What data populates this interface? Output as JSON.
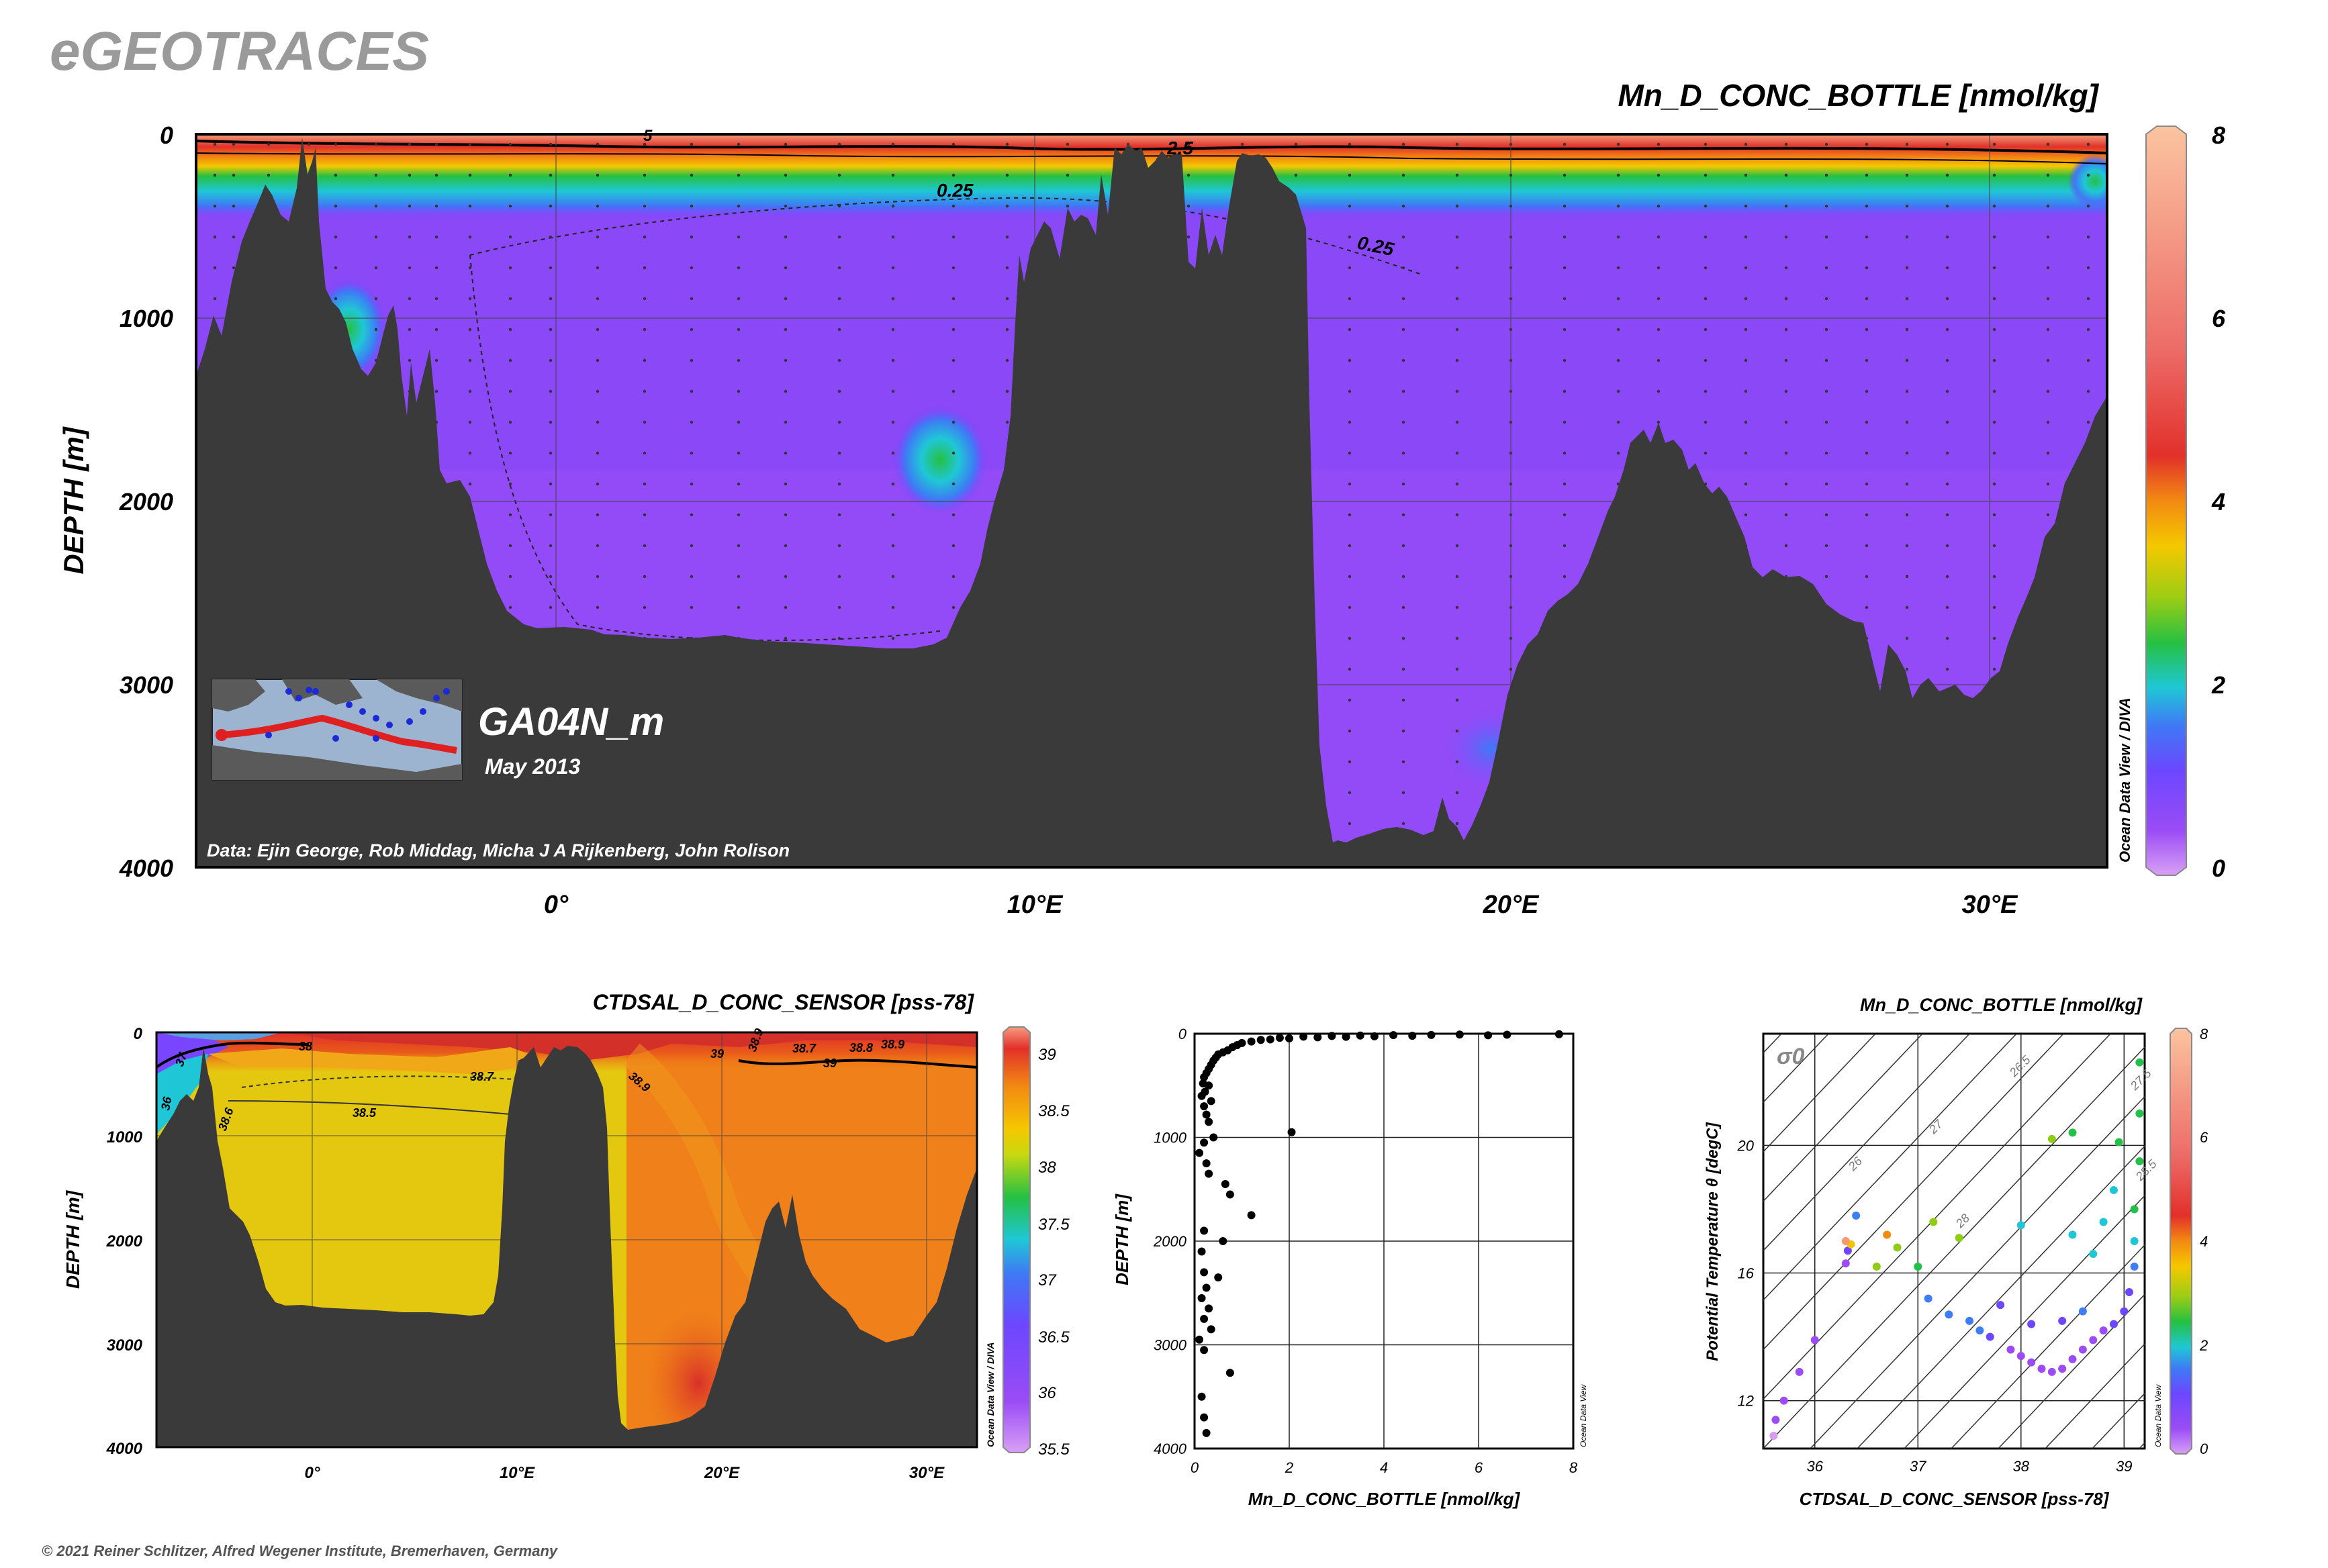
{
  "logo": "eGEOTRACES",
  "copyright": "© 2021 Reiner Schlitzer, Alfred Wegener Institute, Bremerhaven, Germany",
  "odv_label": "Ocean Data View / DIVA",
  "odv_label_short": "Ocean Data View",
  "colors": {
    "bathymetry": "#3a3a3a",
    "scale": [
      "#d79cf2",
      "#9d4cf5",
      "#6c47ff",
      "#3d7df5",
      "#1fc7d6",
      "#23c04a",
      "#8fcc14",
      "#f5c400",
      "#f28a12",
      "#e2302a",
      "#f79a70",
      "#fbc8a5"
    ]
  },
  "main_section": {
    "title": "Mn_D_CONC_BOTTLE [nmol/kg]",
    "ylabel": "DEPTH [m]",
    "depth_ticks": [
      "0",
      "1000",
      "2000",
      "3000",
      "4000"
    ],
    "lon_ticks": [
      "0°",
      "10°E",
      "20°E",
      "30°E"
    ],
    "colorbar_ticks": [
      "8",
      "6",
      "4",
      "2",
      "0"
    ],
    "contour_labels": [
      "0.25",
      "0.25",
      "2.5",
      "5"
    ],
    "cruise": "GA04N_m",
    "date": "May 2013",
    "credits": "Data: Ejin George, Rob Middag, Micha J A Rijkenberg, John Rolison"
  },
  "salinity_section": {
    "title": "CTDSAL_D_CONC_SENSOR [pss-78]",
    "ylabel": "DEPTH [m]",
    "depth_ticks": [
      "0",
      "1000",
      "2000",
      "3000",
      "4000"
    ],
    "lon_ticks": [
      "0°",
      "10°E",
      "20°E",
      "30°E"
    ],
    "colorbar_ticks": [
      "39",
      "38.5",
      "38",
      "37.5",
      "37",
      "36.5",
      "36",
      "35.5"
    ],
    "contour_labels": [
      "38",
      "38.5",
      "38.6",
      "38.7",
      "38.9",
      "39",
      "39",
      "38.7",
      "38.8",
      "38.9",
      "36",
      "37",
      "38.9"
    ]
  },
  "chart_data": [
    {
      "type": "heatmap",
      "title": "Mn_D_CONC_BOTTLE [nmol/kg]",
      "ylabel": "DEPTH [m]",
      "ylim": [
        4000,
        0
      ],
      "xlim": [
        -7.5,
        32.5
      ],
      "colorbar_range": [
        0,
        8
      ]
    },
    {
      "type": "heatmap",
      "title": "CTDSAL_D_CONC_SENSOR [pss-78]",
      "ylabel": "DEPTH [m]",
      "ylim": [
        4000,
        0
      ],
      "xlim": [
        -7.5,
        32.5
      ],
      "colorbar_range": [
        35.5,
        39
      ]
    },
    {
      "type": "scatter",
      "xlabel": "Mn_D_CONC_BOTTLE [nmol/kg]",
      "ylabel": "DEPTH [m]",
      "xlim": [
        0,
        8
      ],
      "ylim": [
        4000,
        0
      ],
      "x_ticks": [
        "0",
        "2",
        "4",
        "6",
        "8"
      ],
      "y_ticks": [
        "0",
        "1000",
        "2000",
        "3000",
        "4000"
      ],
      "points": [
        [
          7.7,
          5
        ],
        [
          6.6,
          10
        ],
        [
          6.2,
          15
        ],
        [
          5.6,
          8
        ],
        [
          5.0,
          12
        ],
        [
          4.6,
          20
        ],
        [
          4.2,
          14
        ],
        [
          3.8,
          25
        ],
        [
          3.5,
          18
        ],
        [
          3.2,
          30
        ],
        [
          2.9,
          22
        ],
        [
          2.6,
          35
        ],
        [
          2.3,
          28
        ],
        [
          2.0,
          45
        ],
        [
          1.8,
          40
        ],
        [
          1.6,
          55
        ],
        [
          1.4,
          60
        ],
        [
          1.2,
          75
        ],
        [
          1.0,
          90
        ],
        [
          0.9,
          110
        ],
        [
          0.8,
          130
        ],
        [
          0.7,
          160
        ],
        [
          0.6,
          180
        ],
        [
          0.5,
          200
        ],
        [
          0.45,
          230
        ],
        [
          0.4,
          260
        ],
        [
          0.35,
          300
        ],
        [
          0.3,
          340
        ],
        [
          0.25,
          380
        ],
        [
          0.2,
          420
        ],
        [
          0.18,
          480
        ],
        [
          0.3,
          500
        ],
        [
          0.22,
          560
        ],
        [
          0.15,
          600
        ],
        [
          0.35,
          650
        ],
        [
          0.2,
          700
        ],
        [
          0.25,
          780
        ],
        [
          0.3,
          850
        ],
        [
          2.05,
          950
        ],
        [
          0.4,
          1000
        ],
        [
          0.2,
          1050
        ],
        [
          0.1,
          1150
        ],
        [
          0.25,
          1250
        ],
        [
          0.3,
          1350
        ],
        [
          0.65,
          1450
        ],
        [
          0.75,
          1550
        ],
        [
          1.2,
          1750
        ],
        [
          0.2,
          1900
        ],
        [
          0.6,
          2000
        ],
        [
          0.15,
          2100
        ],
        [
          0.2,
          2300
        ],
        [
          0.5,
          2350
        ],
        [
          0.25,
          2450
        ],
        [
          0.15,
          2550
        ],
        [
          0.3,
          2650
        ],
        [
          0.2,
          2750
        ],
        [
          0.35,
          2850
        ],
        [
          0.1,
          2950
        ],
        [
          0.2,
          3050
        ],
        [
          0.75,
          3270
        ],
        [
          0.15,
          3500
        ],
        [
          0.2,
          3700
        ],
        [
          0.25,
          3850
        ]
      ]
    },
    {
      "type": "scatter",
      "title": "Mn_D_CONC_BOTTLE [nmol/kg]",
      "xlabel": "CTDSAL_D_CONC_SENSOR [pss-78]",
      "ylabel": "Potential Temperature θ [degC]",
      "xlim": [
        35.5,
        39.2
      ],
      "ylim": [
        10.5,
        23.5
      ],
      "x_ticks": [
        "36",
        "37",
        "38",
        "39"
      ],
      "y_ticks": [
        "12",
        "16",
        "20"
      ],
      "isopycnal_label": "σ0",
      "isopycnals": [
        "26",
        "26.5",
        "27",
        "27.5",
        "28",
        "28.5"
      ],
      "colorbar_ticks": [
        "8",
        "6",
        "4",
        "2",
        "0"
      ],
      "colorbar_range": [
        0,
        8
      ],
      "points": [
        [
          35.6,
          10.9,
          0.3
        ],
        [
          35.62,
          11.4,
          0.4
        ],
        [
          35.7,
          12.0,
          0.6
        ],
        [
          35.85,
          12.9,
          0.6
        ],
        [
          36.0,
          13.9,
          0.7
        ],
        [
          36.3,
          16.3,
          0.8
        ],
        [
          36.32,
          16.7,
          1.2
        ],
        [
          36.35,
          16.9,
          5.0
        ],
        [
          36.3,
          17.0,
          7.5
        ],
        [
          36.4,
          17.8,
          2.5
        ],
        [
          36.6,
          16.2,
          4.5
        ],
        [
          36.7,
          17.2,
          5.5
        ],
        [
          36.8,
          16.8,
          4.0
        ],
        [
          37.0,
          16.2,
          3.5
        ],
        [
          37.1,
          15.2,
          2.0
        ],
        [
          37.15,
          17.6,
          4.0
        ],
        [
          37.4,
          17.1,
          4.2
        ],
        [
          37.3,
          14.7,
          2.0
        ],
        [
          37.5,
          14.5,
          2.5
        ],
        [
          37.6,
          14.2,
          2.0
        ],
        [
          37.7,
          14.0,
          1.4
        ],
        [
          37.9,
          13.6,
          1.0
        ],
        [
          38.0,
          13.4,
          0.8
        ],
        [
          38.1,
          13.2,
          0.6
        ],
        [
          38.2,
          13.0,
          0.5
        ],
        [
          38.3,
          12.9,
          0.5
        ],
        [
          38.4,
          13.0,
          0.6
        ],
        [
          38.5,
          13.3,
          0.7
        ],
        [
          38.6,
          13.6,
          0.8
        ],
        [
          38.7,
          13.9,
          0.9
        ],
        [
          38.8,
          14.2,
          1.0
        ],
        [
          38.9,
          14.4,
          1.1
        ],
        [
          39.0,
          14.8,
          1.4
        ],
        [
          39.05,
          15.4,
          1.8
        ],
        [
          39.1,
          16.2,
          2.2
        ],
        [
          39.1,
          17.0,
          3.0
        ],
        [
          39.1,
          18.0,
          3.6
        ],
        [
          39.15,
          19.5,
          3.8
        ],
        [
          39.15,
          21.0,
          3.6
        ],
        [
          39.15,
          22.6,
          3.4
        ],
        [
          38.5,
          17.2,
          3.2
        ],
        [
          38.7,
          16.6,
          3.0
        ],
        [
          38.8,
          17.6,
          2.8
        ],
        [
          38.3,
          20.2,
          4.0
        ],
        [
          38.5,
          20.4,
          3.8
        ],
        [
          38.0,
          17.5,
          3.0
        ],
        [
          38.9,
          18.6,
          3.0
        ],
        [
          38.95,
          20.1,
          3.4
        ],
        [
          38.1,
          14.4,
          1.6
        ],
        [
          38.4,
          14.5,
          1.8
        ],
        [
          38.6,
          14.8,
          2.0
        ],
        [
          37.8,
          15.0,
          1.8
        ]
      ]
    }
  ]
}
